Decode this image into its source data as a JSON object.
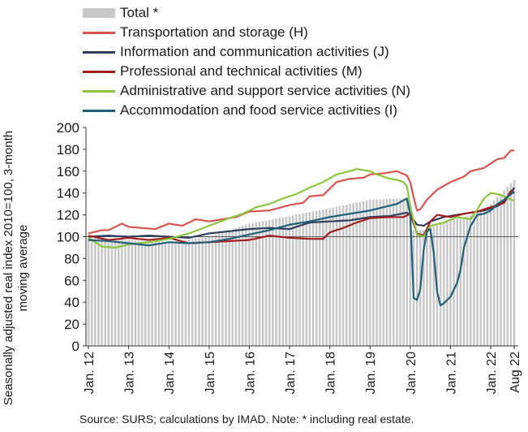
{
  "chart_data": {
    "type": "line",
    "title": "",
    "ylabel": "Seasonally adjusted real index 2010=100, 3-month moving average",
    "xlabel": "",
    "ylim": [
      0,
      200
    ],
    "yticks": [
      0,
      20,
      40,
      60,
      80,
      100,
      120,
      140,
      160,
      180,
      200
    ],
    "reference_line": 100,
    "grid": false,
    "legend_position": "top-left",
    "x_tick_labels": [
      "Jan. 12",
      "Jan. 13",
      "Jan. 14",
      "Jan. 15",
      "Jan. 16",
      "Jan. 17",
      "Jan. 18",
      "Jan. 19",
      "Jan. 20",
      "Jan. 21",
      "Jan. 22",
      "Aug 22"
    ],
    "x_tick_positions": [
      0,
      12,
      24,
      36,
      48,
      60,
      72,
      84,
      96,
      108,
      120,
      127
    ],
    "x_range": [
      0,
      127
    ],
    "bars": {
      "name": "Total *",
      "color": "#c8c8c8",
      "knots": [
        [
          0,
          99
        ],
        [
          12,
          97
        ],
        [
          24,
          95
        ],
        [
          36,
          100
        ],
        [
          48,
          112
        ],
        [
          60,
          119
        ],
        [
          72,
          126
        ],
        [
          84,
          134
        ],
        [
          95,
          135
        ],
        [
          97,
          106
        ],
        [
          100,
          106
        ],
        [
          108,
          115
        ],
        [
          114,
          120
        ],
        [
          120,
          130
        ],
        [
          127,
          152
        ]
      ]
    },
    "series": [
      {
        "name": "Transportation and storage (H)",
        "color": "#d9534f",
        "knots": [
          [
            0,
            103
          ],
          [
            4,
            106
          ],
          [
            6,
            106
          ],
          [
            10,
            112
          ],
          [
            12,
            109
          ],
          [
            20,
            107
          ],
          [
            24,
            112
          ],
          [
            28,
            110
          ],
          [
            32,
            116
          ],
          [
            36,
            114
          ],
          [
            44,
            118
          ],
          [
            48,
            123
          ],
          [
            54,
            124
          ],
          [
            60,
            129
          ],
          [
            64,
            131
          ],
          [
            66,
            137
          ],
          [
            70,
            138
          ],
          [
            74,
            150
          ],
          [
            78,
            153
          ],
          [
            82,
            154
          ],
          [
            84,
            157
          ],
          [
            88,
            158
          ],
          [
            92,
            160
          ],
          [
            95,
            156
          ],
          [
            96,
            150
          ],
          [
            97,
            136
          ],
          [
            98,
            124
          ],
          [
            99,
            125
          ],
          [
            101,
            134
          ],
          [
            104,
            143
          ],
          [
            108,
            150
          ],
          [
            112,
            155
          ],
          [
            114,
            160
          ],
          [
            118,
            163
          ],
          [
            122,
            171
          ],
          [
            124,
            172
          ],
          [
            126,
            179
          ],
          [
            127,
            179
          ]
        ]
      },
      {
        "name": "Information and communication activities (J)",
        "color": "#2d3f5c",
        "knots": [
          [
            0,
            100
          ],
          [
            6,
            101
          ],
          [
            12,
            100
          ],
          [
            18,
            101
          ],
          [
            24,
            100
          ],
          [
            30,
            99
          ],
          [
            36,
            103
          ],
          [
            42,
            105
          ],
          [
            48,
            107
          ],
          [
            54,
            108
          ],
          [
            60,
            107
          ],
          [
            66,
            113
          ],
          [
            72,
            114
          ],
          [
            78,
            115
          ],
          [
            84,
            118
          ],
          [
            90,
            119
          ],
          [
            95,
            122
          ],
          [
            96,
            120
          ],
          [
            98,
            111
          ],
          [
            100,
            110
          ],
          [
            102,
            114
          ],
          [
            106,
            118
          ],
          [
            110,
            120
          ],
          [
            114,
            122
          ],
          [
            118,
            124
          ],
          [
            122,
            128
          ],
          [
            124,
            132
          ],
          [
            126,
            140
          ],
          [
            127,
            145
          ]
        ]
      },
      {
        "name": "Professional and technical activities (M)",
        "color": "#a31d1d",
        "knots": [
          [
            0,
            101
          ],
          [
            6,
            97
          ],
          [
            12,
            99
          ],
          [
            18,
            97
          ],
          [
            24,
            99
          ],
          [
            30,
            94
          ],
          [
            36,
            95
          ],
          [
            42,
            96
          ],
          [
            48,
            97
          ],
          [
            54,
            101
          ],
          [
            60,
            99
          ],
          [
            66,
            98
          ],
          [
            70,
            98
          ],
          [
            72,
            104
          ],
          [
            76,
            108
          ],
          [
            80,
            113
          ],
          [
            84,
            117
          ],
          [
            90,
            118
          ],
          [
            94,
            118
          ],
          [
            96,
            121
          ],
          [
            98,
            103
          ],
          [
            100,
            101
          ],
          [
            102,
            114
          ],
          [
            104,
            120
          ],
          [
            108,
            118
          ],
          [
            112,
            121
          ],
          [
            116,
            123
          ],
          [
            120,
            127
          ],
          [
            124,
            131
          ],
          [
            126,
            142
          ],
          [
            127,
            140
          ]
        ]
      },
      {
        "name": "Administrative and support service activities (N)",
        "color": "#8cc63f",
        "knots": [
          [
            0,
            99
          ],
          [
            4,
            91
          ],
          [
            8,
            90
          ],
          [
            12,
            93
          ],
          [
            18,
            95
          ],
          [
            24,
            98
          ],
          [
            30,
            103
          ],
          [
            36,
            110
          ],
          [
            42,
            117
          ],
          [
            46,
            121
          ],
          [
            50,
            127
          ],
          [
            54,
            130
          ],
          [
            58,
            135
          ],
          [
            62,
            139
          ],
          [
            66,
            145
          ],
          [
            70,
            150
          ],
          [
            74,
            157
          ],
          [
            78,
            160
          ],
          [
            80,
            162
          ],
          [
            84,
            160
          ],
          [
            86,
            157
          ],
          [
            90,
            153
          ],
          [
            92,
            152
          ],
          [
            94,
            150
          ],
          [
            95,
            146
          ],
          [
            96,
            128
          ],
          [
            98,
            102
          ],
          [
            100,
            100
          ],
          [
            102,
            110
          ],
          [
            106,
            113
          ],
          [
            110,
            118
          ],
          [
            114,
            116
          ],
          [
            116,
            125
          ],
          [
            118,
            135
          ],
          [
            120,
            140
          ],
          [
            122,
            139
          ],
          [
            124,
            137
          ],
          [
            126,
            134
          ],
          [
            127,
            133
          ]
        ]
      },
      {
        "name": "Accommodation and food service activities (I)",
        "color": "#1f5f7a",
        "knots": [
          [
            0,
            97
          ],
          [
            6,
            96
          ],
          [
            12,
            94
          ],
          [
            18,
            92
          ],
          [
            24,
            95
          ],
          [
            30,
            94
          ],
          [
            36,
            95
          ],
          [
            42,
            98
          ],
          [
            48,
            102
          ],
          [
            54,
            106
          ],
          [
            60,
            111
          ],
          [
            66,
            114
          ],
          [
            72,
            118
          ],
          [
            78,
            121
          ],
          [
            84,
            124
          ],
          [
            88,
            127
          ],
          [
            92,
            130
          ],
          [
            95,
            135
          ],
          [
            96,
            120
          ],
          [
            97,
            44
          ],
          [
            98,
            42
          ],
          [
            99,
            52
          ],
          [
            100,
            88
          ],
          [
            101,
            105
          ],
          [
            102,
            107
          ],
          [
            103,
            85
          ],
          [
            104,
            50
          ],
          [
            105,
            37
          ],
          [
            106,
            39
          ],
          [
            108,
            45
          ],
          [
            110,
            58
          ],
          [
            111,
            70
          ],
          [
            112,
            90
          ],
          [
            114,
            110
          ],
          [
            116,
            120
          ],
          [
            118,
            121
          ],
          [
            120,
            124
          ],
          [
            122,
            130
          ],
          [
            124,
            134
          ],
          [
            126,
            139
          ],
          [
            127,
            141
          ]
        ]
      }
    ]
  },
  "legend": {
    "total": "Total *",
    "h": "Transportation and storage (H)",
    "j": "Information and communication activities (J)",
    "m": "Professional and technical activities (M)",
    "n": "Administrative and support service activities (N)",
    "i": "Accommodation and food service activities (I)"
  },
  "source_note": "Source:  SURS; calculations by IMAD. Note: * including real estate."
}
